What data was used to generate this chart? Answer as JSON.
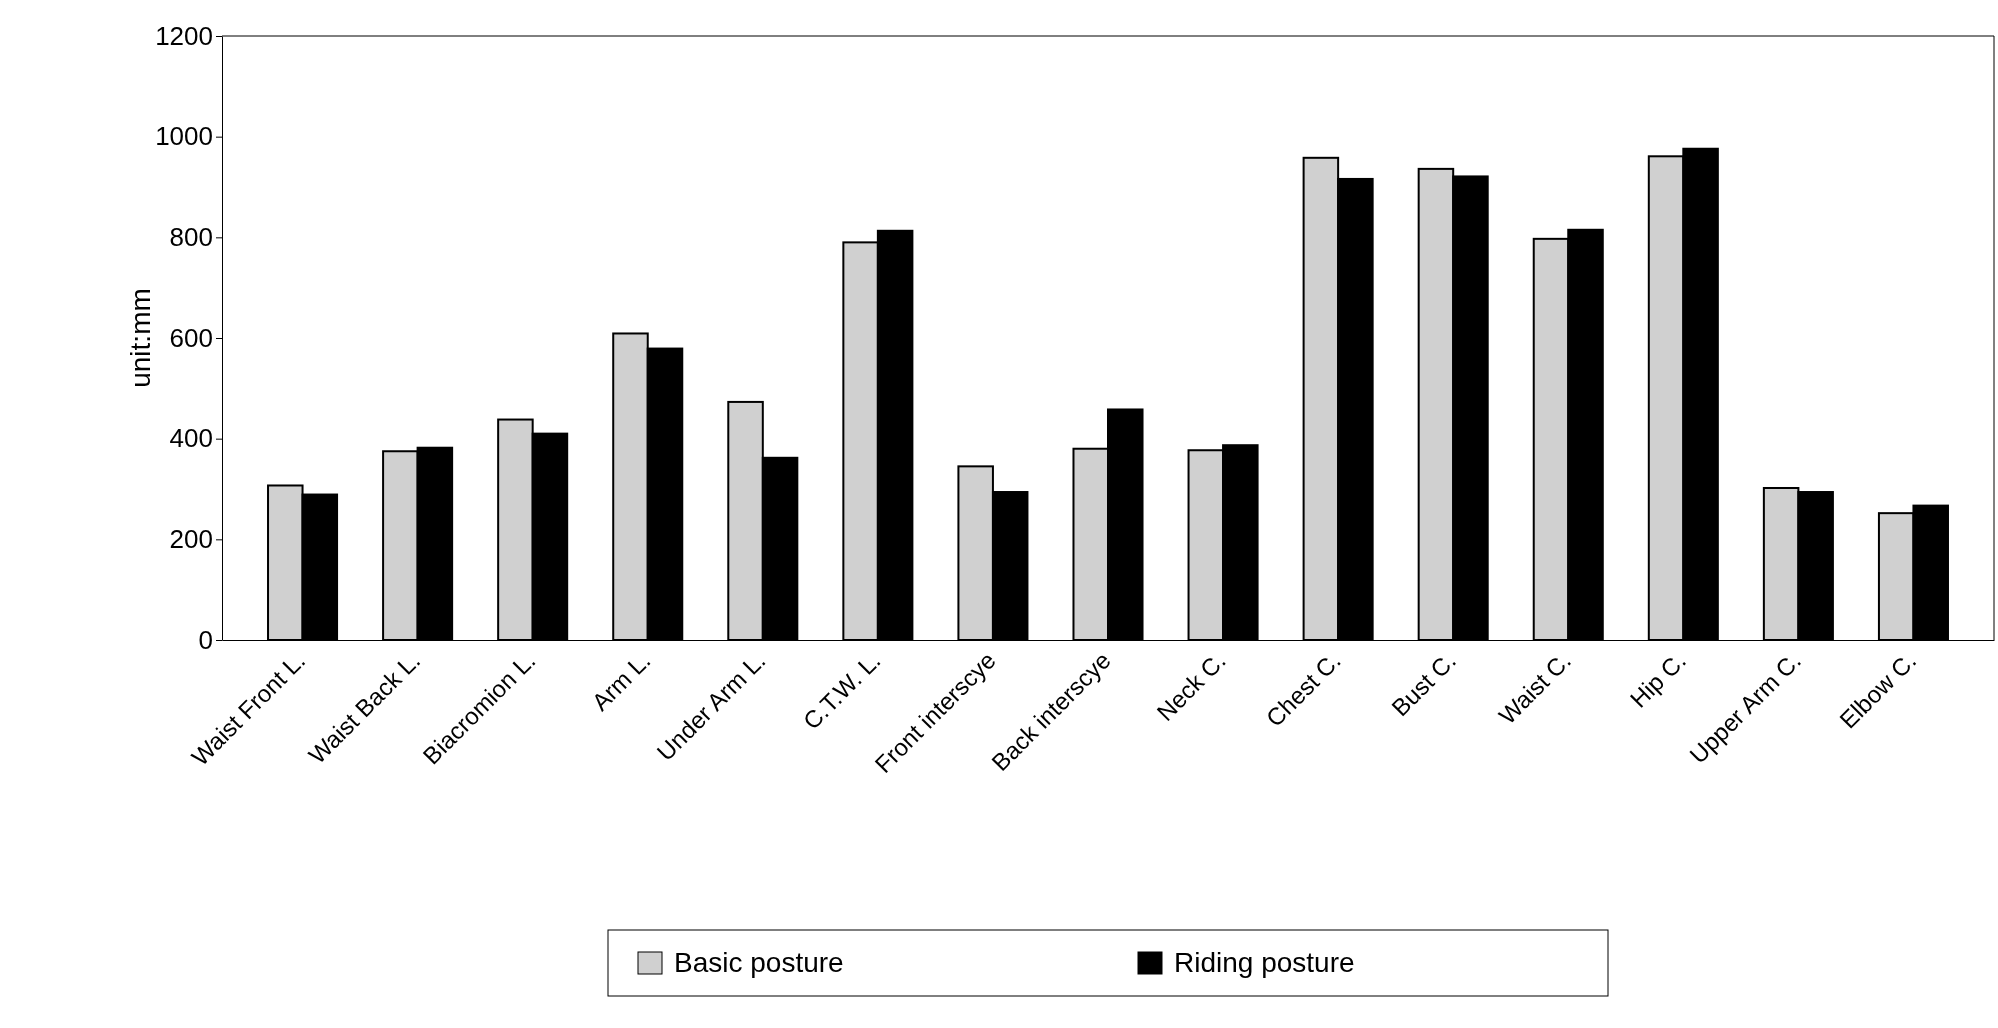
{
  "chart_data": {
    "type": "bar",
    "ylabel": "unit:mm",
    "categories": [
      "Waist Front L.",
      "Waist Back L.",
      "Biacromion L.",
      "Arm L.",
      "Under Arm L.",
      "C.T.W. L.",
      "Front interscye",
      "Back interscye",
      "Neck C.",
      "Chest C.",
      "Bust C.",
      "Waist C.",
      "Hip C.",
      "Upper Arm C.",
      "Elbow C."
    ],
    "series": [
      {
        "name": "Basic posture",
        "color": "#d0d0d0",
        "values": [
          307,
          375,
          438,
          609,
          473,
          790,
          345,
          380,
          377,
          958,
          936,
          797,
          961,
          302,
          252
        ]
      },
      {
        "name": "Riding posture",
        "color": "#000000",
        "values": [
          289,
          382,
          410,
          579,
          362,
          813,
          294,
          458,
          387,
          916,
          921,
          815,
          976,
          294,
          267
        ]
      }
    ],
    "ylim": [
      0,
      1200
    ],
    "yticks": [
      0,
      200,
      400,
      600,
      800,
      1000,
      1200
    ],
    "legend": "bottom"
  }
}
